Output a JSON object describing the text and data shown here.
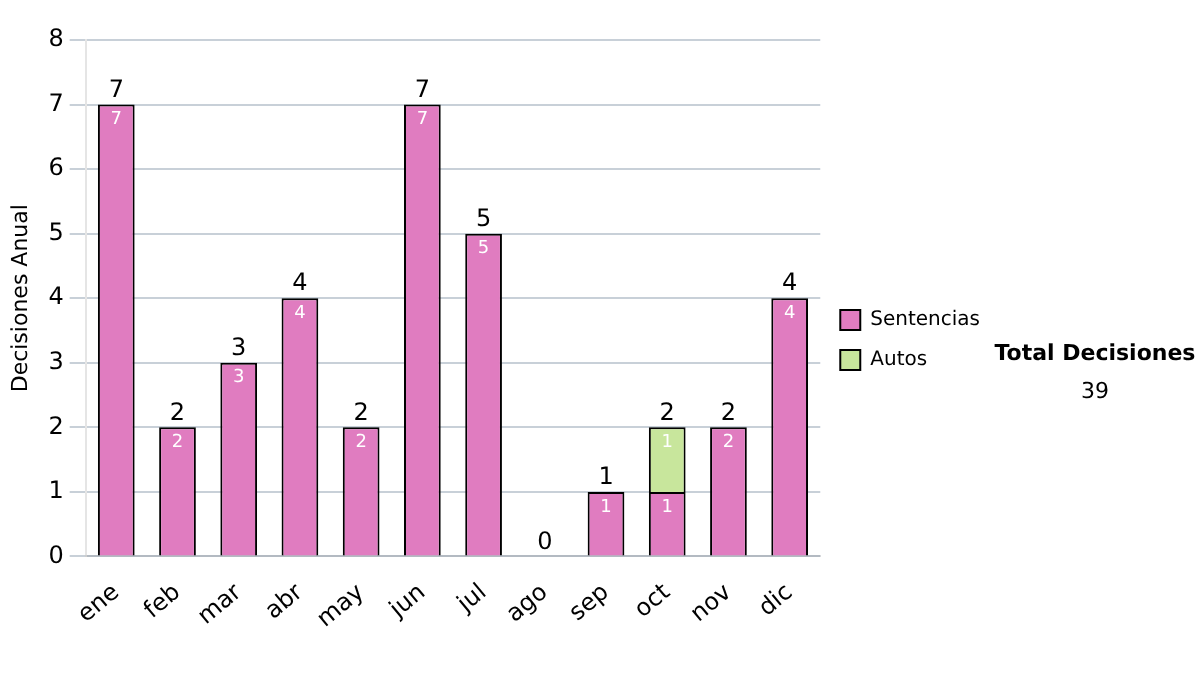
{
  "chart_data": {
    "type": "bar",
    "stacked": true,
    "ylabel": "Decisiones Anual",
    "categories": [
      "ene",
      "feb",
      "mar",
      "abr",
      "may",
      "jun",
      "jul",
      "ago",
      "sep",
      "oct",
      "nov",
      "dic"
    ],
    "series": [
      {
        "name": "Sentencias",
        "color": "#e07cc0",
        "values": [
          7,
          2,
          3,
          4,
          2,
          7,
          5,
          0,
          1,
          1,
          2,
          4
        ],
        "value_labels": [
          "7",
          "2",
          "3",
          "4",
          "2",
          "7",
          "5",
          null,
          "1",
          "1",
          "2",
          "4"
        ]
      },
      {
        "name": "Autos",
        "color": "#c8e69c",
        "values": [
          null,
          null,
          null,
          null,
          null,
          null,
          null,
          null,
          null,
          1,
          null,
          null
        ],
        "value_labels": [
          null,
          null,
          null,
          null,
          null,
          null,
          null,
          null,
          null,
          "1",
          null,
          null
        ]
      }
    ],
    "totals": [
      "7",
      "2",
      "3",
      "4",
      "2",
      "7",
      "5",
      "0",
      "1",
      "2",
      "2",
      "4"
    ],
    "ylim": [
      0,
      8
    ],
    "yticks": [
      0,
      1,
      2,
      3,
      4,
      5,
      6,
      7,
      8
    ],
    "grid": "y",
    "legend": "right",
    "annotations": [
      "Total Decisiones",
      "39"
    ]
  }
}
